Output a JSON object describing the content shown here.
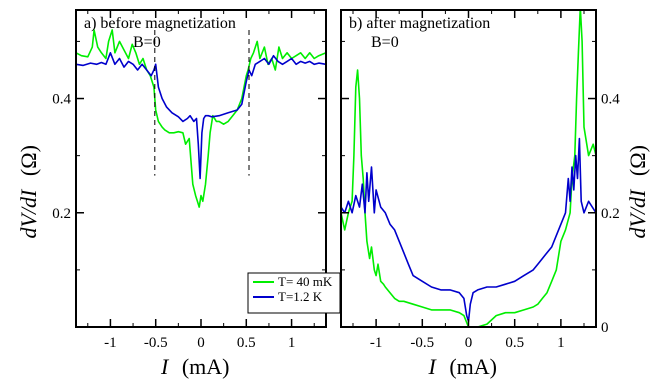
{
  "chart_data": [
    {
      "type": "line",
      "annotation": "a)  before magnetization",
      "field_label": "B=0",
      "xlabel_var": "I",
      "xlabel_unit": "(mA)",
      "ylabel_var": "dV/dI",
      "ylabel_unit": "(Ω)",
      "xlim": [
        -1.38,
        1.38
      ],
      "ylim": [
        0,
        0.555
      ],
      "xticks": [
        -1,
        -0.5,
        0,
        0.5,
        1
      ],
      "xtick_labels": [
        "-1",
        "-0.5",
        "0",
        "0.5",
        "1"
      ],
      "yticks": [
        0.2,
        0.4
      ],
      "ytick_labels": [
        "0.2",
        "0.4"
      ],
      "y_axis_side": "left",
      "dashed_markers": [
        {
          "x": -0.51,
          "y_from": 0.265,
          "y_to": 0.52
        },
        {
          "x": 0.53,
          "y_from": 0.265,
          "y_to": 0.52
        }
      ],
      "series": [
        {
          "name": "T= 40 mK",
          "color": "#00ee00",
          "x": [
            -1.38,
            -1.32,
            -1.25,
            -1.2,
            -1.18,
            -1.14,
            -1.1,
            -1.05,
            -1.02,
            -0.98,
            -0.95,
            -0.9,
            -0.85,
            -0.8,
            -0.76,
            -0.72,
            -0.68,
            -0.64,
            -0.6,
            -0.56,
            -0.52,
            -0.5,
            -0.47,
            -0.43,
            -0.4,
            -0.35,
            -0.3,
            -0.25,
            -0.2,
            -0.17,
            -0.13,
            -0.09,
            -0.06,
            -0.04,
            -0.02,
            0,
            0.02,
            0.05,
            0.08,
            0.1,
            0.13,
            0.17,
            0.2,
            0.25,
            0.3,
            0.35,
            0.4,
            0.45,
            0.5,
            0.52,
            0.55,
            0.58,
            0.62,
            0.65,
            0.7,
            0.74,
            0.78,
            0.82,
            0.86,
            0.9,
            0.95,
            1,
            1.05,
            1.1,
            1.15,
            1.2,
            1.25,
            1.3,
            1.38
          ],
          "y": [
            0.48,
            0.475,
            0.473,
            0.49,
            0.52,
            0.49,
            0.48,
            0.47,
            0.5,
            0.52,
            0.48,
            0.5,
            0.485,
            0.47,
            0.495,
            0.48,
            0.46,
            0.47,
            0.45,
            0.44,
            0.42,
            0.38,
            0.36,
            0.35,
            0.345,
            0.34,
            0.34,
            0.342,
            0.34,
            0.32,
            0.33,
            0.25,
            0.23,
            0.22,
            0.21,
            0.23,
            0.22,
            0.25,
            0.3,
            0.34,
            0.37,
            0.36,
            0.36,
            0.355,
            0.36,
            0.37,
            0.38,
            0.4,
            0.44,
            0.45,
            0.47,
            0.48,
            0.5,
            0.47,
            0.49,
            0.46,
            0.47,
            0.45,
            0.49,
            0.47,
            0.48,
            0.47,
            0.475,
            0.48,
            0.47,
            0.48,
            0.47,
            0.475,
            0.48
          ]
        },
        {
          "name": "T=1.2 K",
          "color": "#0000cc",
          "x": [
            -1.38,
            -1.3,
            -1.22,
            -1.15,
            -1.1,
            -1.05,
            -1.0,
            -0.95,
            -0.9,
            -0.85,
            -0.8,
            -0.75,
            -0.7,
            -0.65,
            -0.6,
            -0.55,
            -0.52,
            -0.5,
            -0.47,
            -0.43,
            -0.38,
            -0.32,
            -0.25,
            -0.2,
            -0.15,
            -0.12,
            -0.08,
            -0.05,
            -0.03,
            -0.01,
            0.01,
            0.03,
            0.05,
            0.08,
            0.12,
            0.2,
            0.3,
            0.4,
            0.45,
            0.5,
            0.53,
            0.56,
            0.6,
            0.65,
            0.7,
            0.75,
            0.8,
            0.85,
            0.9,
            0.95,
            1,
            1.05,
            1.1,
            1.15,
            1.2,
            1.25,
            1.3,
            1.38
          ],
          "y": [
            0.46,
            0.458,
            0.462,
            0.46,
            0.463,
            0.46,
            0.48,
            0.46,
            0.47,
            0.455,
            0.465,
            0.46,
            0.45,
            0.46,
            0.45,
            0.44,
            0.45,
            0.46,
            0.42,
            0.4,
            0.385,
            0.375,
            0.368,
            0.36,
            0.365,
            0.37,
            0.36,
            0.365,
            0.32,
            0.26,
            0.34,
            0.365,
            0.37,
            0.37,
            0.368,
            0.37,
            0.375,
            0.38,
            0.39,
            0.43,
            0.45,
            0.44,
            0.46,
            0.465,
            0.47,
            0.46,
            0.475,
            0.465,
            0.46,
            0.465,
            0.47,
            0.46,
            0.465,
            0.462,
            0.465,
            0.46,
            0.462,
            0.46
          ]
        }
      ]
    },
    {
      "type": "line",
      "annotation": "b)  after magnetization",
      "field_label": "B=0",
      "xlabel_var": "I",
      "xlabel_unit": "(mA)",
      "ylabel_var": "dV/dI",
      "ylabel_unit": "(Ω)",
      "xlim": [
        -1.38,
        1.38
      ],
      "ylim": [
        0,
        0.555
      ],
      "xticks": [
        -1,
        -0.5,
        0,
        0.5,
        1
      ],
      "xtick_labels": [
        "-1",
        "-0.5",
        "0",
        "0.5",
        "1"
      ],
      "yticks": [
        0,
        0.2,
        0.4
      ],
      "ytick_labels": [
        "0",
        "0.2",
        "0.4"
      ],
      "y_axis_side": "right",
      "legend_position": "top-left",
      "series": [
        {
          "name": "T= 40 mK",
          "color": "#00ee00",
          "x": [
            -1.38,
            -1.34,
            -1.3,
            -1.26,
            -1.24,
            -1.22,
            -1.2,
            -1.18,
            -1.16,
            -1.14,
            -1.12,
            -1.1,
            -1.07,
            -1.05,
            -1.02,
            -1.0,
            -0.98,
            -0.95,
            -0.92,
            -0.9,
            -0.85,
            -0.8,
            -0.75,
            -0.7,
            -0.6,
            -0.5,
            -0.4,
            -0.3,
            -0.2,
            -0.1,
            -0.05,
            0,
            0.05,
            0.1,
            0.2,
            0.3,
            0.4,
            0.5,
            0.6,
            0.7,
            0.75,
            0.8,
            0.85,
            0.9,
            0.95,
            1.0,
            1.05,
            1.1,
            1.12,
            1.15,
            1.17,
            1.19,
            1.21,
            1.23,
            1.25,
            1.3,
            1.35,
            1.38
          ],
          "y": [
            0.2,
            0.17,
            0.2,
            0.22,
            0.3,
            0.42,
            0.45,
            0.4,
            0.3,
            0.26,
            0.2,
            0.15,
            0.12,
            0.14,
            0.1,
            0.09,
            0.11,
            0.08,
            0.075,
            0.07,
            0.06,
            0.05,
            0.045,
            0.045,
            0.04,
            0.035,
            0.03,
            0.03,
            0.03,
            0.025,
            0.02,
            0.0,
            0.0,
            0.0,
            0.005,
            0.02,
            0.025,
            0.025,
            0.03,
            0.035,
            0.04,
            0.05,
            0.06,
            0.08,
            0.1,
            0.15,
            0.17,
            0.2,
            0.26,
            0.3,
            0.4,
            0.48,
            0.56,
            0.5,
            0.35,
            0.3,
            0.32,
            0.3
          ]
        },
        {
          "name": "T=1.2 K",
          "color": "#0000cc",
          "x": [
            -1.38,
            -1.34,
            -1.3,
            -1.26,
            -1.22,
            -1.18,
            -1.15,
            -1.12,
            -1.1,
            -1.08,
            -1.05,
            -1.02,
            -1.0,
            -0.95,
            -0.9,
            -0.85,
            -0.8,
            -0.75,
            -0.7,
            -0.65,
            -0.6,
            -0.5,
            -0.4,
            -0.3,
            -0.2,
            -0.1,
            -0.05,
            -0.02,
            0,
            0.02,
            0.05,
            0.1,
            0.2,
            0.3,
            0.4,
            0.5,
            0.6,
            0.7,
            0.75,
            0.8,
            0.85,
            0.9,
            0.95,
            1.0,
            1.05,
            1.08,
            1.1,
            1.12,
            1.14,
            1.16,
            1.18,
            1.2,
            1.22,
            1.25,
            1.3,
            1.38
          ],
          "y": [
            0.21,
            0.2,
            0.22,
            0.2,
            0.23,
            0.21,
            0.25,
            0.2,
            0.27,
            0.22,
            0.28,
            0.2,
            0.24,
            0.21,
            0.2,
            0.18,
            0.17,
            0.15,
            0.13,
            0.11,
            0.09,
            0.08,
            0.07,
            0.065,
            0.065,
            0.06,
            0.05,
            0.02,
            0.01,
            0.04,
            0.06,
            0.065,
            0.07,
            0.07,
            0.075,
            0.08,
            0.09,
            0.1,
            0.11,
            0.12,
            0.13,
            0.14,
            0.16,
            0.18,
            0.2,
            0.26,
            0.22,
            0.28,
            0.24,
            0.3,
            0.26,
            0.33,
            0.22,
            0.2,
            0.22,
            0.2
          ]
        }
      ]
    }
  ]
}
